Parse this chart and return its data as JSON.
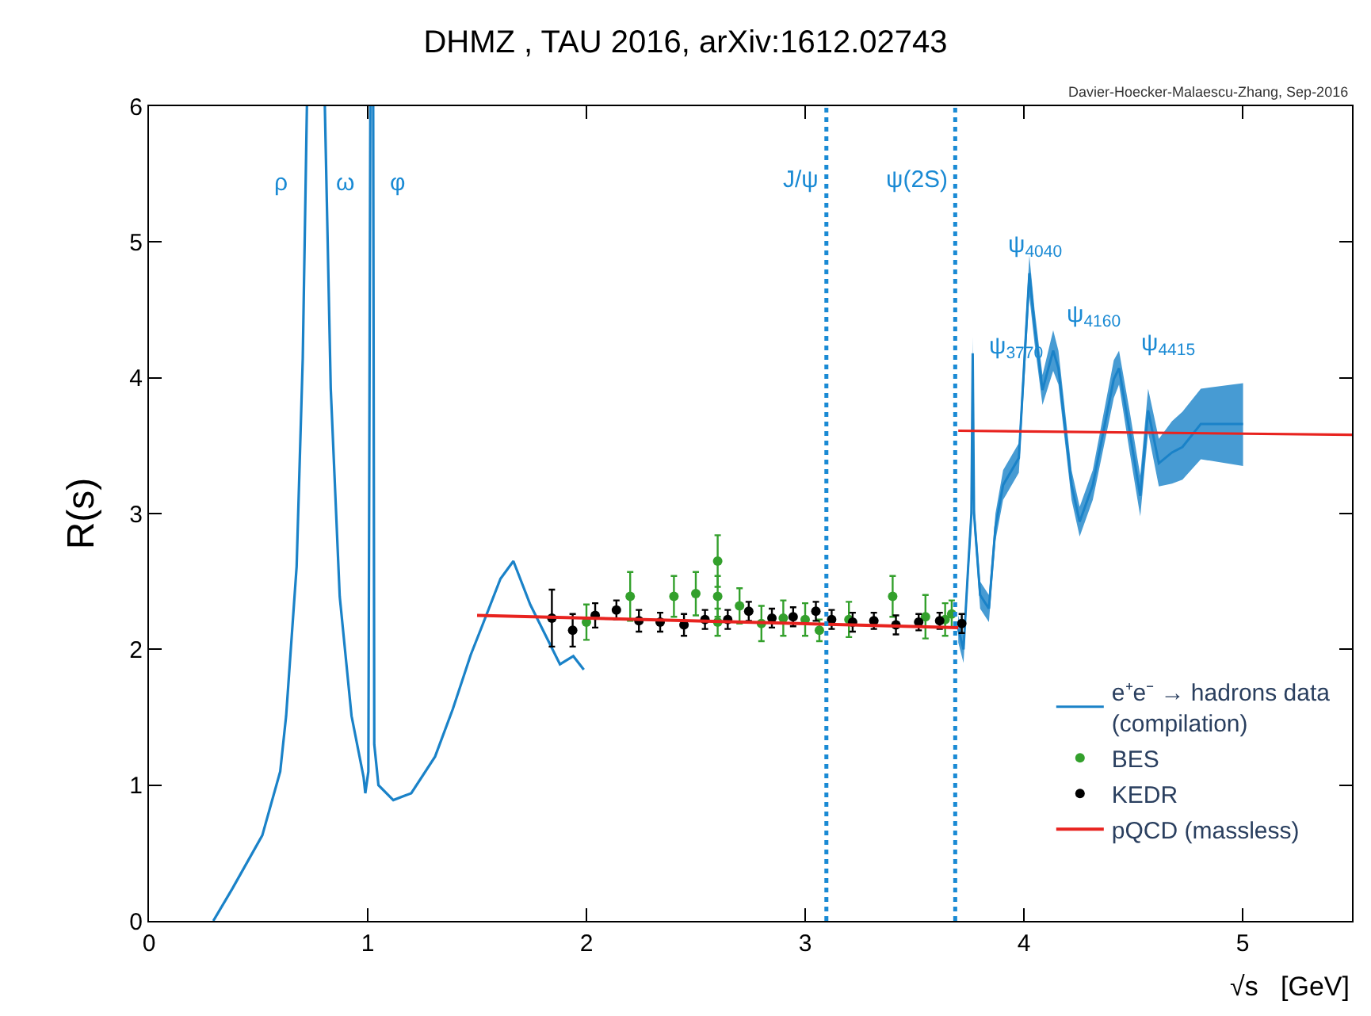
{
  "chart_data": {
    "type": "line",
    "title": "DHMZ , TAU 2016, arXiv:1612.02743",
    "xlabel": "√s   [GeV]",
    "ylabel": "R(s)",
    "xlim": [
      0,
      5.5
    ],
    "xticks": [
      0,
      1,
      2,
      3,
      4,
      5
    ],
    "ylim": [
      0,
      6
    ],
    "yticks": [
      0,
      1,
      2,
      3,
      4,
      5,
      6
    ],
    "legend": "bottom right",
    "series": [
      {
        "color": "#1a82c8",
        "x": [
          0.294,
          0.382,
          0.518,
          0.6,
          0.627,
          0.675,
          0.703,
          0.722,
          0.76,
          0.804,
          0.831,
          0.872,
          0.926,
          0.981,
          0.989,
          1.003,
          1.012,
          1.02,
          1.025,
          1.03,
          1.049,
          1.117,
          1.199,
          1.308,
          1.389,
          1.471,
          1.525,
          1.607,
          1.666,
          1.743,
          1.879,
          1.94,
          1.988
        ],
        "values": [
          0,
          0.24,
          0.63,
          1.1,
          1.51,
          2.61,
          4.14,
          6,
          null,
          6,
          3.92,
          2.39,
          1.51,
          1.06,
          0.94,
          1.1,
          6,
          null,
          6,
          1.3,
          1.0,
          0.89,
          0.94,
          1.21,
          1.56,
          1.96,
          2.18,
          2.52,
          2.65,
          2.33,
          1.89,
          1.95,
          1.85
        ]
      },
      {
        "name": "e⁺e⁻ → hadrons data\n(compilation)",
        "color": "#1a82c8",
        "x": [
          3.7,
          3.724,
          3.745,
          3.76,
          3.766,
          3.772,
          3.8,
          3.84,
          3.87,
          3.905,
          3.977,
          4.025,
          4.049,
          4.085,
          4.134,
          4.158,
          4.218,
          4.255,
          4.315,
          4.411,
          4.435,
          4.484,
          4.532,
          4.568,
          4.617,
          4.677,
          4.725,
          4.809,
          5.002
        ],
        "values": [
          2.15,
          2.0,
          2.6,
          3.0,
          4.18,
          3.0,
          2.4,
          2.3,
          2.9,
          3.21,
          3.41,
          4.77,
          4.38,
          3.91,
          4.2,
          4.07,
          3.21,
          2.94,
          3.21,
          3.99,
          4.07,
          3.6,
          3.13,
          3.76,
          3.37,
          3.45,
          3.49,
          3.66,
          3.66
        ],
        "lower": [
          2.05,
          1.9,
          2.5,
          2.9,
          4.05,
          2.9,
          2.3,
          2.2,
          2.8,
          3.1,
          3.3,
          4.6,
          4.25,
          3.8,
          4.05,
          3.95,
          3.1,
          2.83,
          3.1,
          3.85,
          3.95,
          3.45,
          2.98,
          3.6,
          3.2,
          3.22,
          3.25,
          3.4,
          3.35
        ],
        "upper": [
          2.25,
          2.1,
          2.7,
          3.1,
          4.3,
          3.1,
          2.5,
          2.4,
          3.0,
          3.32,
          3.52,
          4.9,
          4.5,
          4.02,
          4.35,
          4.2,
          3.32,
          3.05,
          3.32,
          4.13,
          4.2,
          3.75,
          3.28,
          3.92,
          3.55,
          3.68,
          3.75,
          3.92,
          3.96
        ]
      },
      {
        "name": "BES",
        "type": "scatter",
        "color": "#33a02c",
        "marker": "circle",
        "x": [
          2.0,
          2.2,
          2.4,
          2.5,
          2.6,
          2.6,
          2.6,
          2.7,
          2.8,
          2.9,
          3.0,
          3.065,
          3.2,
          3.4,
          3.55,
          3.64,
          3.67
        ],
        "values": [
          2.2,
          2.39,
          2.39,
          2.41,
          2.65,
          2.39,
          2.2,
          2.32,
          2.19,
          2.23,
          2.22,
          2.14,
          2.22,
          2.39,
          2.24,
          2.22,
          2.26
        ],
        "errors": [
          0.13,
          0.18,
          0.15,
          0.16,
          0.19,
          0.15,
          0.1,
          0.13,
          0.13,
          0.13,
          0.12,
          0.08,
          0.13,
          0.15,
          0.16,
          0.12,
          0.1
        ]
      },
      {
        "name": "KEDR",
        "type": "scatter",
        "color": "#000000",
        "marker": "circle",
        "x": [
          1.842,
          1.937,
          2.04,
          2.137,
          2.24,
          2.337,
          2.446,
          2.542,
          2.646,
          2.742,
          2.848,
          2.945,
          3.049,
          3.121,
          3.217,
          3.314,
          3.415,
          3.519,
          3.615,
          3.716
        ],
        "values": [
          2.23,
          2.14,
          2.25,
          2.29,
          2.21,
          2.2,
          2.18,
          2.22,
          2.22,
          2.28,
          2.23,
          2.24,
          2.28,
          2.22,
          2.2,
          2.21,
          2.18,
          2.2,
          2.21,
          2.19
        ],
        "errors": [
          0.21,
          0.12,
          0.09,
          0.07,
          0.08,
          0.07,
          0.08,
          0.07,
          0.07,
          0.07,
          0.07,
          0.07,
          0.07,
          0.07,
          0.07,
          0.06,
          0.07,
          0.06,
          0.06,
          0.07
        ]
      },
      {
        "name": "pQCD (massless)",
        "color": "#e8231f",
        "x": [
          1.5,
          3.7
        ],
        "values": [
          2.25,
          2.16
        ]
      },
      {
        "color": "#e8231f",
        "x": [
          3.7,
          5.5
        ],
        "values": [
          3.61,
          3.58
        ]
      }
    ],
    "ref_lines": [
      {
        "axis": "x",
        "value": 3.097,
        "label": "J/ψ",
        "color": "#1a8ad4",
        "line_style": "dotted"
      },
      {
        "axis": "x",
        "value": 3.686,
        "label": "ψ(2S)",
        "color": "#1a8ad4",
        "line_style": "dotted"
      }
    ],
    "annotations": [
      "Davier-Hoecker-Malaescu-Zhang, Sep-2016",
      "ρ",
      "ω",
      "φ",
      "ψ$_{3770}$",
      "ψ$_{4040}$",
      "ψ$_{4160}$",
      "ψ$_{4415}$"
    ]
  }
}
